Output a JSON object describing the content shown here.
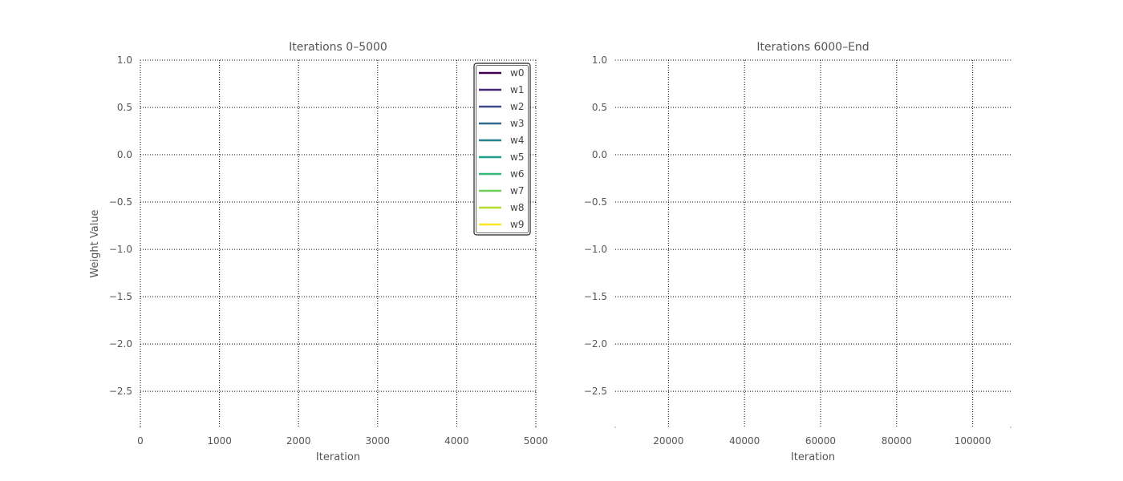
{
  "chart_data": [
    {
      "type": "line",
      "title": "Iterations 0–5000",
      "xlabel": "Iteration",
      "ylabel": "Weight Value",
      "xlim": [
        0,
        5000
      ],
      "ylim": [
        -2.88,
        1.0
      ],
      "xticks": [
        0,
        1000,
        2000,
        3000,
        4000,
        5000
      ],
      "xtick_labels": [
        "0",
        "1000",
        "2000",
        "3000",
        "4000",
        "5000"
      ],
      "yticks": [
        1.0,
        0.5,
        0.0,
        -0.5,
        -1.0,
        -1.5,
        -2.0,
        -2.5
      ],
      "ytick_labels": [
        "1.0",
        "0.5",
        "0.0",
        "−0.5",
        "−1.0",
        "−1.5",
        "−2.0",
        "−2.5"
      ],
      "grid": true,
      "legend_position": "top-right",
      "series": [
        {
          "name": "w0",
          "color": "#440154",
          "values": []
        },
        {
          "name": "w1",
          "color": "#482878",
          "values": []
        },
        {
          "name": "w2",
          "color": "#3e4989",
          "values": []
        },
        {
          "name": "w3",
          "color": "#31688e",
          "values": []
        },
        {
          "name": "w4",
          "color": "#26828e",
          "values": []
        },
        {
          "name": "w5",
          "color": "#1f9e89",
          "values": []
        },
        {
          "name": "w6",
          "color": "#35b779",
          "values": []
        },
        {
          "name": "w7",
          "color": "#6ece58",
          "values": []
        },
        {
          "name": "w8",
          "color": "#b5de2b",
          "values": []
        },
        {
          "name": "w9",
          "color": "#fde725",
          "values": []
        }
      ]
    },
    {
      "type": "line",
      "title": "Iterations 6000–End",
      "xlabel": "Iteration",
      "ylabel": "",
      "xlim": [
        6000,
        110000
      ],
      "ylim": [
        -2.88,
        1.0
      ],
      "xticks": [
        20000,
        40000,
        60000,
        80000,
        100000
      ],
      "xtick_labels": [
        "20000",
        "40000",
        "60000",
        "80000",
        "100000"
      ],
      "yticks": [
        1.0,
        0.5,
        0.0,
        -0.5,
        -1.0,
        -1.5,
        -2.0,
        -2.5
      ],
      "ytick_labels": [
        "1.0",
        "0.5",
        "0.0",
        "−0.5",
        "−1.0",
        "−1.5",
        "−2.0",
        "−2.5"
      ],
      "grid": true,
      "series": []
    }
  ]
}
